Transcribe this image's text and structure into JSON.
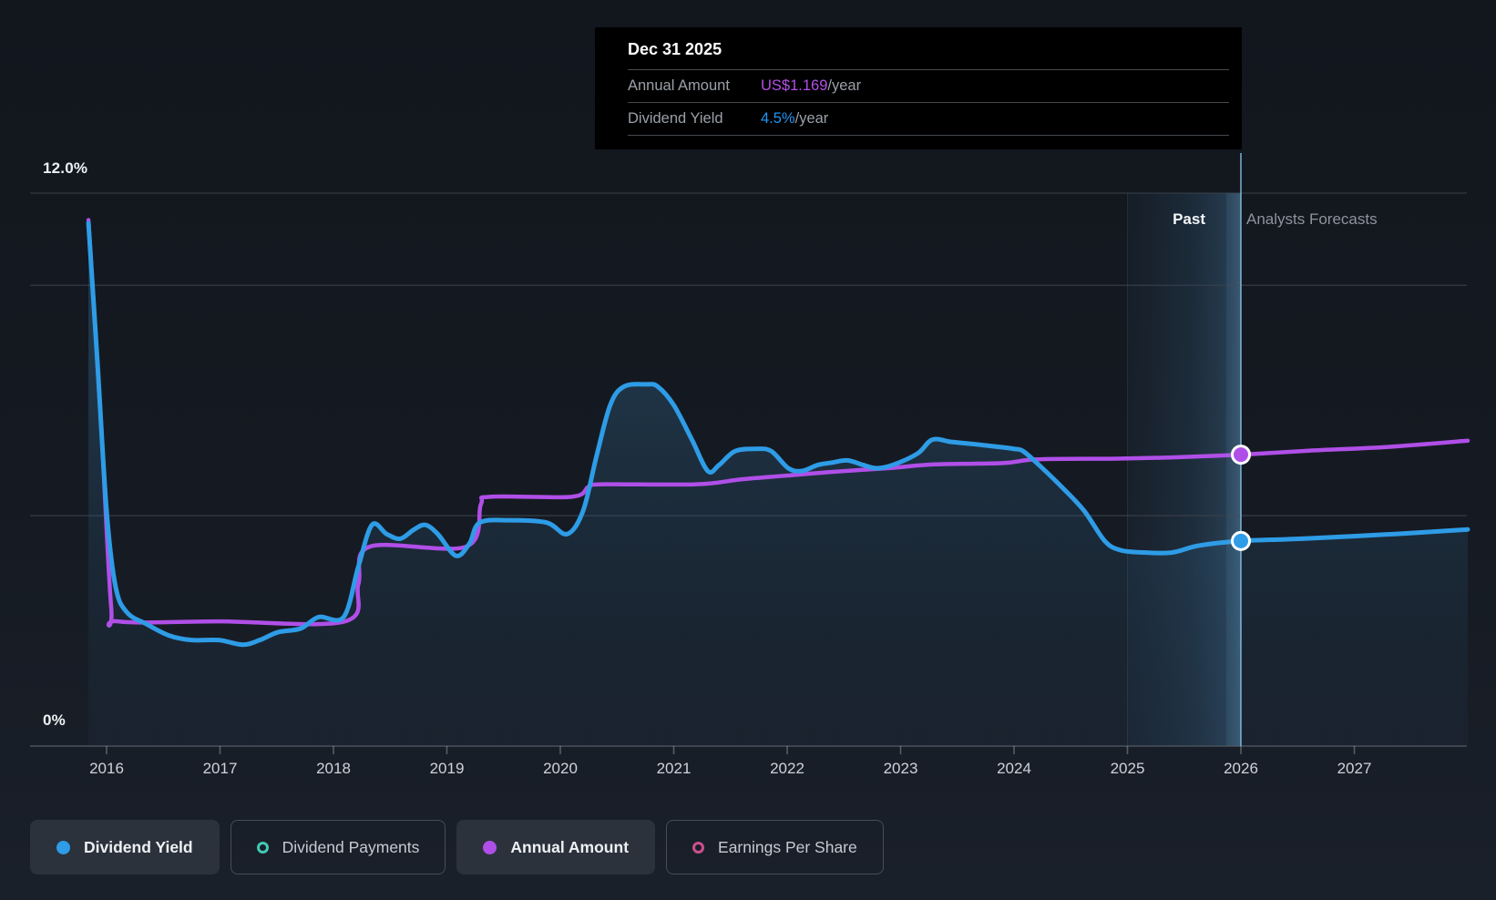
{
  "chart_data": {
    "type": "line",
    "x_ticks": [
      2016,
      2017,
      2018,
      2019,
      2020,
      2021,
      2022,
      2023,
      2024,
      2025,
      2026,
      2027
    ],
    "x_range": [
      2015.8,
      2028.0
    ],
    "y_axis": {
      "label_top": "12.0%",
      "label_bottom": "0%",
      "min": 0,
      "max": 12,
      "gridlines_pct": [
        12,
        10,
        5,
        0
      ],
      "grid_on": true
    },
    "y2_axis": {
      "min": 0,
      "max": 2.218
    },
    "past_band": {
      "start": 2025,
      "end": 2026
    },
    "hover": {
      "x": 2026,
      "date": "Dec 31 2025",
      "annual_amount": 1.169,
      "dividend_yield_pct": 4.45
    },
    "series": [
      {
        "name": "Annual Amount",
        "axis": "y2",
        "color": "#b04fe8",
        "width": 4.5,
        "area": false,
        "points": [
          [
            2015.84,
            2.11
          ],
          [
            2015.95,
            1.3
          ],
          [
            2016.04,
            0.56
          ],
          [
            2016.1,
            0.5
          ],
          [
            2017.0,
            0.5
          ],
          [
            2018.1,
            0.5
          ],
          [
            2018.22,
            0.65
          ],
          [
            2018.32,
            0.8
          ],
          [
            2019.17,
            0.8
          ],
          [
            2019.3,
            0.97
          ],
          [
            2019.38,
            1.0
          ],
          [
            2020.1,
            1.0
          ],
          [
            2020.25,
            1.04
          ],
          [
            2020.38,
            1.05
          ],
          [
            2021.2,
            1.05
          ],
          [
            2021.6,
            1.07
          ],
          [
            2022.0,
            1.085
          ],
          [
            2022.4,
            1.1
          ],
          [
            2022.9,
            1.115
          ],
          [
            2023.3,
            1.13
          ],
          [
            2023.9,
            1.135
          ],
          [
            2024.2,
            1.15
          ],
          [
            2024.9,
            1.153
          ],
          [
            2025.4,
            1.158
          ],
          [
            2026.0,
            1.169
          ],
          [
            2026.6,
            1.185
          ],
          [
            2027.3,
            1.2
          ],
          [
            2028.0,
            1.225
          ]
        ]
      },
      {
        "name": "Dividend Yield",
        "axis": "y",
        "color": "#2e9ce6",
        "width": 5,
        "area": true,
        "points": [
          [
            2015.84,
            11.35
          ],
          [
            2015.92,
            8.3
          ],
          [
            2016.0,
            5.1
          ],
          [
            2016.08,
            3.45
          ],
          [
            2016.18,
            2.9
          ],
          [
            2016.35,
            2.65
          ],
          [
            2016.55,
            2.4
          ],
          [
            2016.75,
            2.3
          ],
          [
            2016.99,
            2.3
          ],
          [
            2017.2,
            2.2
          ],
          [
            2017.35,
            2.3
          ],
          [
            2017.51,
            2.47
          ],
          [
            2017.71,
            2.55
          ],
          [
            2017.87,
            2.8
          ],
          [
            2018.09,
            2.8
          ],
          [
            2018.22,
            3.9
          ],
          [
            2018.34,
            4.8
          ],
          [
            2018.47,
            4.6
          ],
          [
            2018.59,
            4.5
          ],
          [
            2018.71,
            4.7
          ],
          [
            2018.81,
            4.8
          ],
          [
            2018.92,
            4.6
          ],
          [
            2019.08,
            4.13
          ],
          [
            2019.2,
            4.4
          ],
          [
            2019.29,
            4.85
          ],
          [
            2019.56,
            4.9
          ],
          [
            2019.88,
            4.85
          ],
          [
            2020.06,
            4.6
          ],
          [
            2020.2,
            5.1
          ],
          [
            2020.32,
            6.3
          ],
          [
            2020.44,
            7.4
          ],
          [
            2020.56,
            7.8
          ],
          [
            2020.76,
            7.85
          ],
          [
            2020.86,
            7.8
          ],
          [
            2021.0,
            7.4
          ],
          [
            2021.16,
            6.65
          ],
          [
            2021.3,
            5.97
          ],
          [
            2021.4,
            6.1
          ],
          [
            2021.54,
            6.4
          ],
          [
            2021.73,
            6.45
          ],
          [
            2021.86,
            6.4
          ],
          [
            2022.01,
            6.03
          ],
          [
            2022.13,
            5.97
          ],
          [
            2022.27,
            6.1
          ],
          [
            2022.39,
            6.15
          ],
          [
            2022.53,
            6.2
          ],
          [
            2022.67,
            6.1
          ],
          [
            2022.79,
            6.03
          ],
          [
            2022.93,
            6.1
          ],
          [
            2023.15,
            6.35
          ],
          [
            2023.28,
            6.65
          ],
          [
            2023.45,
            6.6
          ],
          [
            2023.66,
            6.55
          ],
          [
            2023.84,
            6.5
          ],
          [
            2024.0,
            6.45
          ],
          [
            2024.08,
            6.4
          ],
          [
            2024.22,
            6.1
          ],
          [
            2024.43,
            5.6
          ],
          [
            2024.62,
            5.1
          ],
          [
            2024.8,
            4.45
          ],
          [
            2024.94,
            4.25
          ],
          [
            2025.15,
            4.2
          ],
          [
            2025.39,
            4.2
          ],
          [
            2025.63,
            4.35
          ],
          [
            2026.0,
            4.45
          ],
          [
            2026.54,
            4.5
          ],
          [
            2027.34,
            4.6
          ],
          [
            2028.0,
            4.7
          ]
        ]
      }
    ]
  },
  "tooltip": {
    "date": "Dec 31 2025",
    "rows": [
      {
        "label": "Annual Amount",
        "value": "US$1.169",
        "suffix": "/year",
        "color": "#b44fe8"
      },
      {
        "label": "Dividend Yield",
        "value": "4.5%",
        "suffix": "/year",
        "color": "#2196f3"
      }
    ]
  },
  "annotations": {
    "past": "Past",
    "forecast": "Analysts Forecasts"
  },
  "legend": [
    {
      "label": "Dividend Yield",
      "marker": "filled",
      "color": "#2e9ce6",
      "active": true
    },
    {
      "label": "Dividend Payments",
      "marker": "ring",
      "color": "#41c9b4",
      "active": false
    },
    {
      "label": "Annual Amount",
      "marker": "filled",
      "color": "#b04fe8",
      "active": true
    },
    {
      "label": "Earnings Per Share",
      "marker": "ring",
      "color": "#cc4f8e",
      "active": false
    }
  ],
  "colors": {
    "background": "#151a22",
    "gridline": "#39404a",
    "axis_line": "#4c525b",
    "tick_label": "#ced3da",
    "hover_line": "#8ec8f0",
    "tooltip_bg": "#000000",
    "marker_ring": "#ffffff"
  }
}
